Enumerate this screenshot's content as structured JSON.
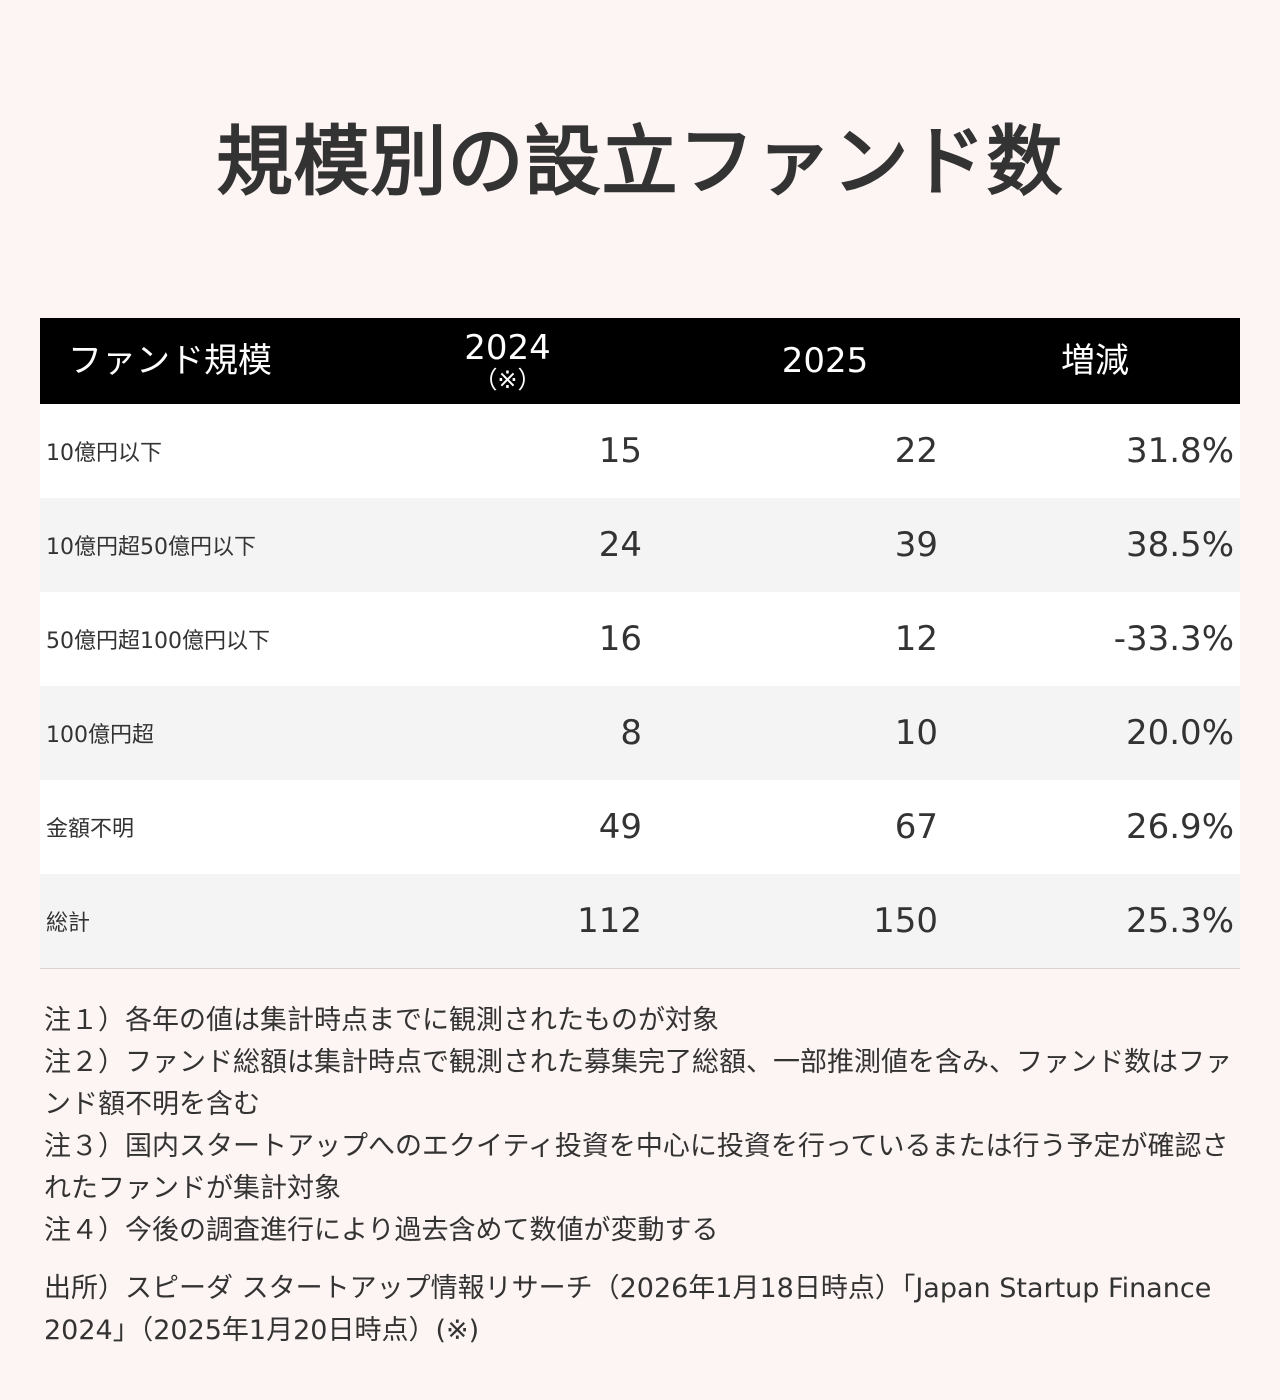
{
  "title": "規模別の設立ファンド数",
  "table": {
    "headers": {
      "fund_size": "ファンド規模",
      "year_2024": "2024",
      "year_2024_note": "（※）",
      "year_2025": "2025",
      "change": "増減"
    },
    "rows": [
      {
        "label": "10億円以下",
        "v2024": "15",
        "v2025": "22",
        "change": "31.8%"
      },
      {
        "label": "10億円超50億円以下",
        "v2024": "24",
        "v2025": "39",
        "change": "38.5%"
      },
      {
        "label": "50億円超100億円以下",
        "v2024": "16",
        "v2025": "12",
        "change": "-33.3%"
      },
      {
        "label": "100億円超",
        "v2024": "8",
        "v2025": "10",
        "change": "20.0%"
      },
      {
        "label": "金額不明",
        "v2024": "49",
        "v2025": "67",
        "change": "26.9%"
      },
      {
        "label": "総計",
        "v2024": "112",
        "v2025": "150",
        "change": "25.3%"
      }
    ]
  },
  "notes": [
    "注１）各年の値は集計時点までに観測されたものが対象",
    "注２）ファンド総額は集計時点で観測された募集完了総額、一部推測値を含み、ファンド数はファンド額不明を含む",
    "注３）国内スタートアップへのエクイティ投資を中心に投資を行っているまたは行う予定が確認されたファンドが集計対象",
    "注４）今後の調査進行により過去含めて数値が変動する"
  ],
  "source": "出所）スピーダ スタートアップ情報リサーチ（2026年1月18日時点）「Japan Startup Finance 2024」（2025年1月20日時点）(※)"
}
